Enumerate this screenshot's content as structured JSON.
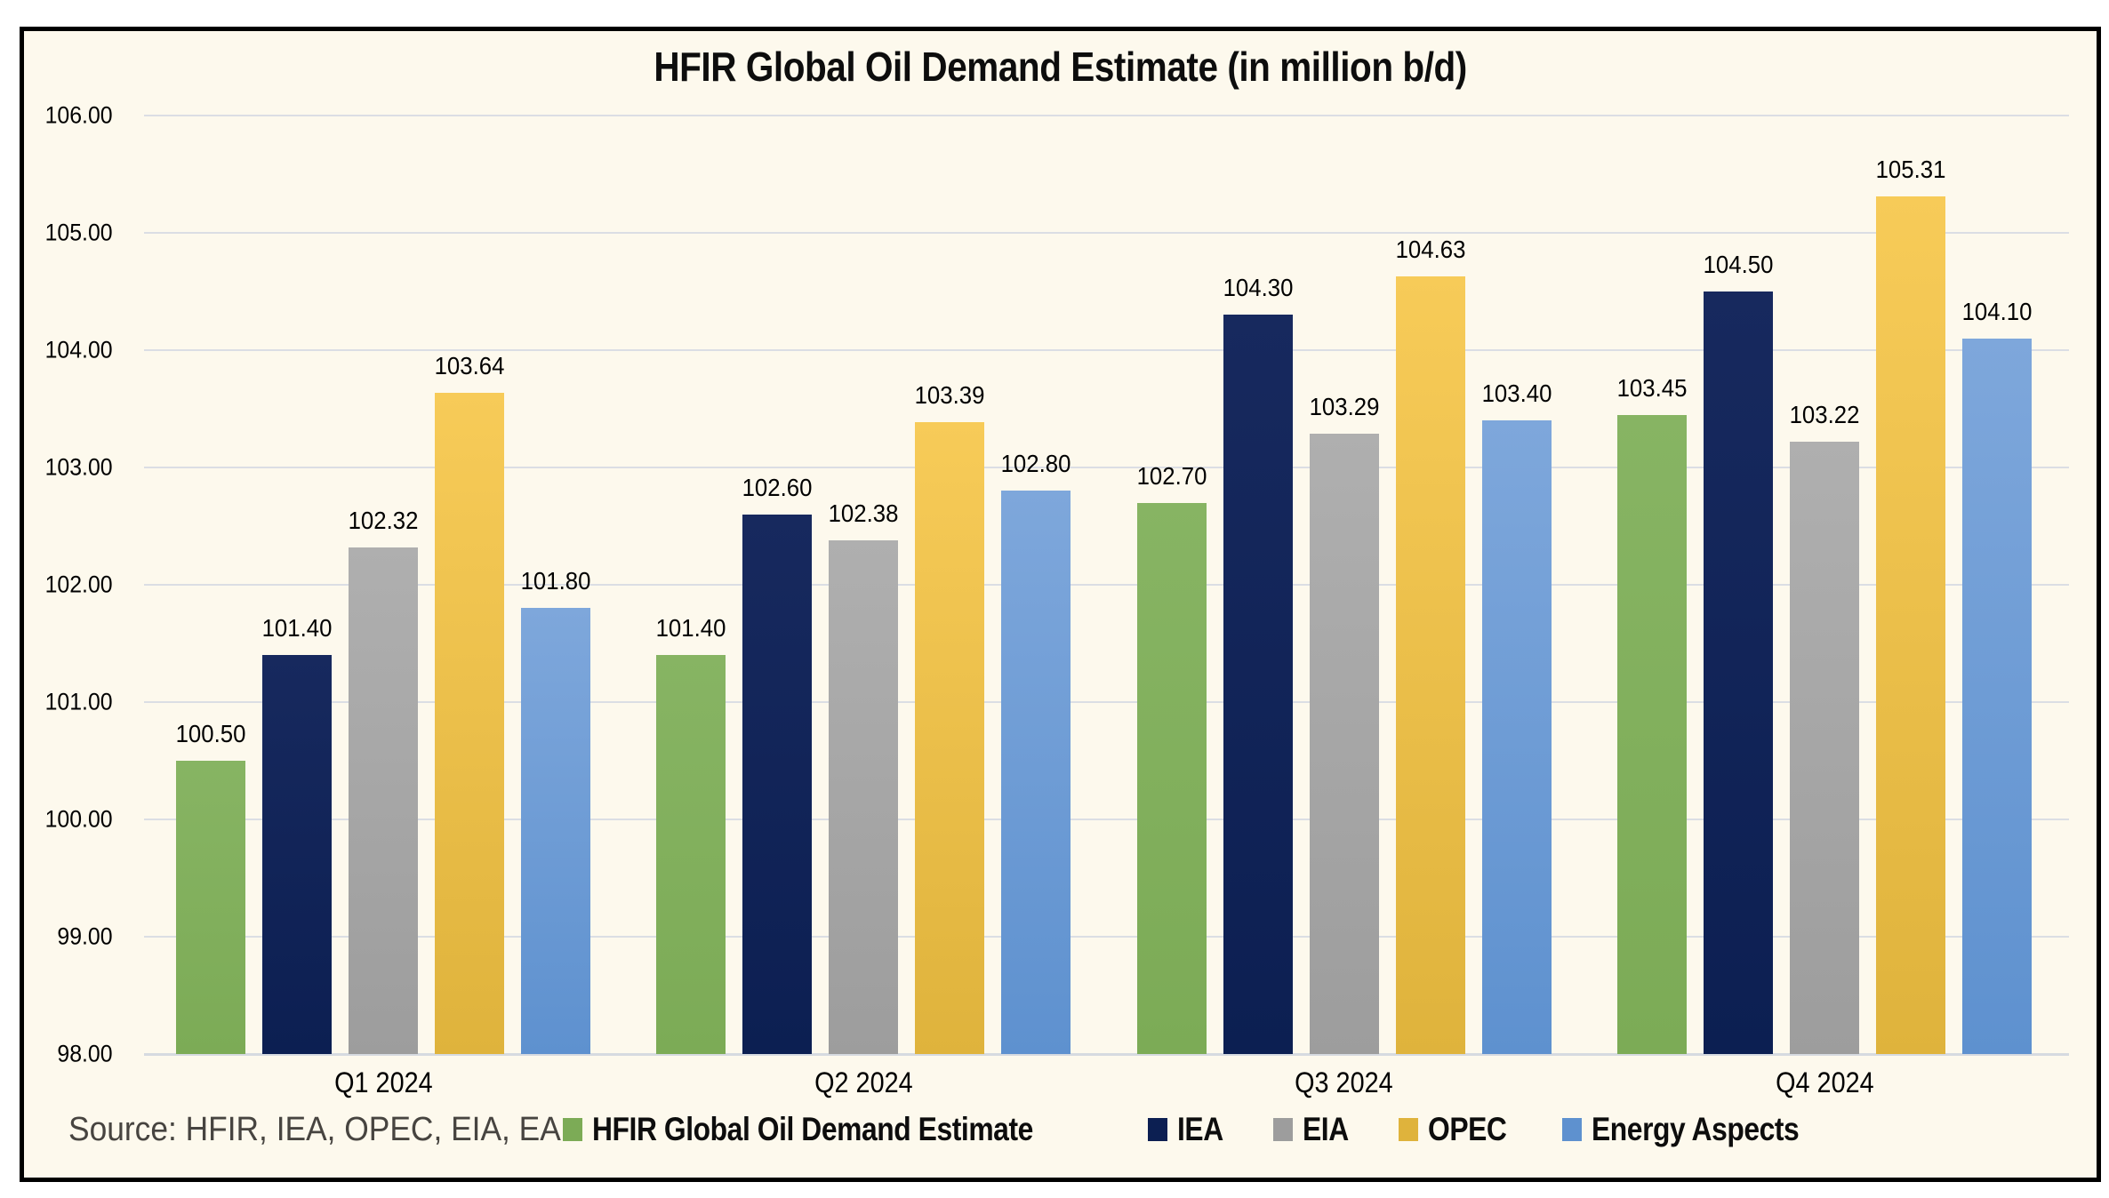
{
  "title": "HFIR Global Oil Demand Estimate (in million b/d)",
  "source": "Source: HFIR, IEA, OPEC, EIA, EA",
  "colors": {
    "page_background": "#FFFFFF",
    "chart_background": "#FDF9ED",
    "frame_border": "#000000",
    "gridline": "#DBDEE4",
    "axis_line": "#D6DAE0",
    "text": "#000000",
    "source_text": "#474440"
  },
  "chart_data": {
    "type": "bar",
    "title": "HFIR Global Oil Demand Estimate (in million b/d)",
    "categories": [
      "Q1 2024",
      "Q2 2024",
      "Q3 2024",
      "Q4 2024"
    ],
    "series": [
      {
        "name": "HFIR Global Oil Demand Estimate",
        "color": "#7CAB56",
        "color_top": "#87B463",
        "values": [
          100.5,
          101.4,
          102.7,
          103.45
        ]
      },
      {
        "name": "IEA",
        "color": "#0C1F52",
        "color_top": "#17295E",
        "values": [
          101.4,
          102.6,
          104.3,
          104.5
        ]
      },
      {
        "name": "EIA",
        "color": "#9D9D9D",
        "color_top": "#AFAFAF",
        "values": [
          102.32,
          102.38,
          103.29,
          103.22
        ]
      },
      {
        "name": "OPEC",
        "color": "#DFB33C",
        "color_top": "#F7CB58",
        "values": [
          103.64,
          103.39,
          104.63,
          105.31
        ]
      },
      {
        "name": "Energy Aspects",
        "color": "#5E91CF",
        "color_top": "#7EA7DB",
        "values": [
          101.8,
          102.8,
          103.4,
          104.1
        ]
      }
    ],
    "xlabel": "",
    "ylabel": "",
    "ylim": [
      98.0,
      106.0
    ],
    "ytick_step": 1.0,
    "ytick_format_decimals": 2,
    "value_labels": true,
    "value_label_decimals": 2,
    "grid": true,
    "legend_position": "bottom"
  }
}
